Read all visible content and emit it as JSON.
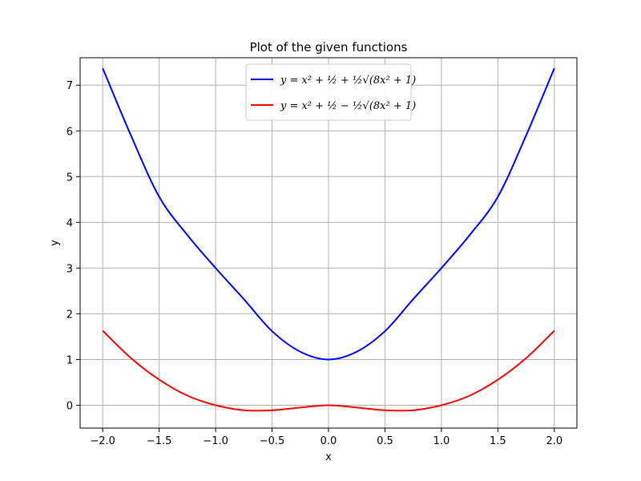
{
  "chart_data": {
    "type": "line",
    "title": "Plot of the given functions",
    "xlabel": "x",
    "ylabel": "y",
    "xlim": [
      -2.2,
      2.2
    ],
    "ylim": [
      -0.5,
      7.6
    ],
    "xticks": [
      -2.0,
      -1.5,
      -1.0,
      -0.5,
      0.0,
      0.5,
      1.0,
      1.5,
      2.0
    ],
    "xtick_labels": [
      "−2.0",
      "−1.5",
      "−1.0",
      "−0.5",
      "0.0",
      "0.5",
      "1.0",
      "1.5",
      "2.0"
    ],
    "yticks": [
      0,
      1,
      2,
      3,
      4,
      5,
      6,
      7
    ],
    "ytick_labels": [
      "0",
      "1",
      "2",
      "3",
      "4",
      "5",
      "6",
      "7"
    ],
    "grid": true,
    "legend_position": "top-center",
    "series": [
      {
        "name": "y = x² + ½ + ½√(8x² + 1)",
        "color": "#0000ff",
        "x": [
          -2.0,
          -1.75,
          -1.5,
          -1.25,
          -1.0,
          -0.75,
          -0.5,
          -0.25,
          0.0,
          0.25,
          0.5,
          0.75,
          1.0,
          1.25,
          1.5,
          1.75,
          2.0
        ],
        "y": [
          7.37,
          5.9,
          4.56,
          3.72,
          3.0,
          2.32,
          1.62,
          1.17,
          1.0,
          1.17,
          1.62,
          2.32,
          3.0,
          3.72,
          4.56,
          5.9,
          7.37
        ]
      },
      {
        "name": "y = x² + ½ − ½√(8x² + 1)",
        "color": "#ff0000",
        "x": [
          -2.0,
          -1.75,
          -1.5,
          -1.25,
          -1.0,
          -0.75,
          -0.5,
          -0.25,
          0.0,
          0.25,
          0.5,
          0.75,
          1.0,
          1.25,
          1.5,
          1.75,
          2.0
        ],
        "y": [
          1.63,
          1.03,
          0.56,
          0.21,
          0.0,
          -0.11,
          -0.11,
          -0.05,
          0.0,
          -0.05,
          -0.11,
          -0.11,
          0.0,
          0.21,
          0.56,
          1.03,
          1.63
        ]
      }
    ]
  }
}
